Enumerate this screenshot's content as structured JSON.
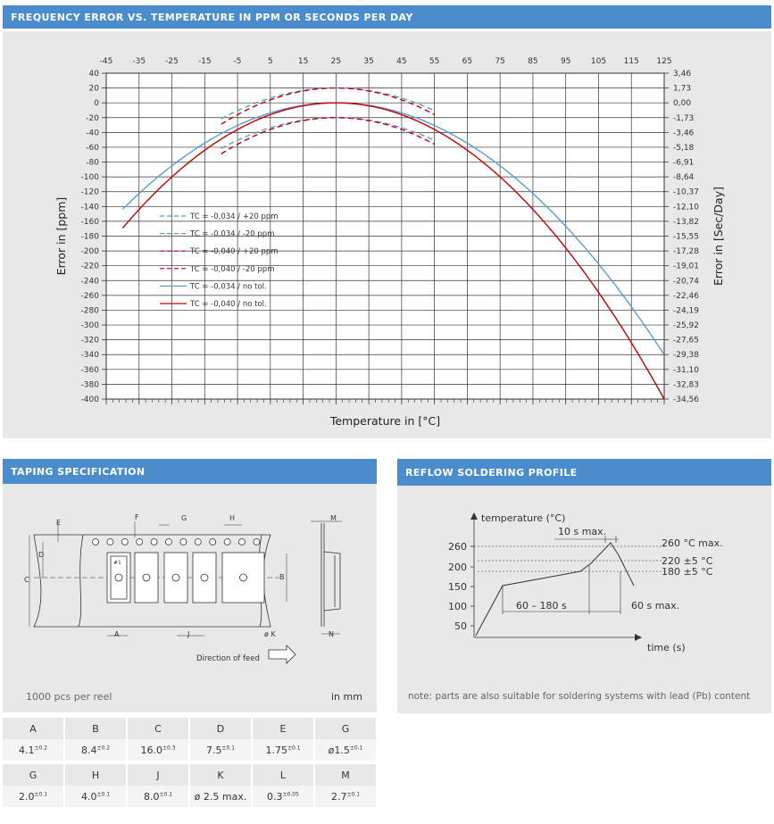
{
  "chart_section": {
    "header": "FREQUENCY ERROR VS. TEMPERATURE IN PPM OR SECONDS PER DAY"
  },
  "chart_data": {
    "type": "line",
    "title": "FREQUENCY ERROR VS. TEMPERATURE IN PPM OR SECONDS PER DAY",
    "xlabel": "Temperature in [°C]",
    "ylabel": "Error in [ppm]",
    "y2label": "Error in [Sec/Day]",
    "xlim": [
      -45,
      125
    ],
    "ylim": [
      -400,
      40
    ],
    "x_ticks": [
      "-45",
      "-35",
      "-25",
      "-15",
      "-5",
      "5",
      "15",
      "25",
      "35",
      "45",
      "55",
      "65",
      "75",
      "85",
      "95",
      "105",
      "115",
      "125"
    ],
    "y_ticks": [
      "40",
      "20",
      "0",
      "-20",
      "-40",
      "-60",
      "-80",
      "-100",
      "-120",
      "-140",
      "-160",
      "-180",
      "-200",
      "-220",
      "-240",
      "-260",
      "-280",
      "-300",
      "-320",
      "-340",
      "-360",
      "-380",
      "-400"
    ],
    "y2_ticks": [
      "3,46",
      "1,73",
      "0,00",
      "-1,73",
      "-3,46",
      "-5,18",
      "-6,91",
      "-8,64",
      "-10,37",
      "-12,10",
      "-13,82",
      "-15,55",
      "-17,28",
      "-19,01",
      "-20,74",
      "-22,46",
      "-24,19",
      "-25,92",
      "-27,65",
      "-29,38",
      "-31,10",
      "-32,83",
      "-34,56"
    ],
    "grid": true,
    "legend_position": "left-middle",
    "series": [
      {
        "name": "TC = -0,034 / +20 ppm",
        "color": "#5b9bd5",
        "dash": true,
        "tc": -0.034,
        "offset": 20,
        "x": [
          -10,
          55
        ]
      },
      {
        "name": "TC = -0,034 / -20 ppm",
        "color": "#5b9bd5",
        "dash": true,
        "tc": -0.034,
        "offset": -20,
        "x": [
          -10,
          55
        ]
      },
      {
        "name": "TC = -0,040 / +20 ppm",
        "color": "#c00000",
        "dash": true,
        "tc": -0.04,
        "offset": 20,
        "x": [
          -10,
          55
        ]
      },
      {
        "name": "TC = -0,040 / -20 ppm",
        "color": "#c00000",
        "dash": true,
        "tc": -0.04,
        "offset": -20,
        "x": [
          -10,
          55
        ]
      },
      {
        "name": "TC = -0,034 / no tol.",
        "color": "#5b9bd5",
        "dash": false,
        "tc": -0.034,
        "offset": 0,
        "x": [
          -40,
          125
        ]
      },
      {
        "name": "TC = -0,040 / no tol.",
        "color": "#c00000",
        "dash": false,
        "tc": -0.04,
        "offset": 0,
        "x": [
          -40,
          125
        ]
      }
    ],
    "turnover_temperature": 25
  },
  "taping": {
    "header": "TAPING SPECIFICATION",
    "labels": {
      "E": "E",
      "F": "F",
      "G": "G",
      "H": "H",
      "M": "M",
      "D": "D",
      "C": "C",
      "B": "B",
      "A": "A",
      "J": "J",
      "K": "ø K",
      "N": "N",
      "pin": "#1"
    },
    "direction": "Direction of feed",
    "footer_left": "1000 pcs per reel",
    "footer_right": "in mm",
    "table": [
      {
        "headers": [
          "A",
          "B",
          "C",
          "D",
          "E",
          "G"
        ],
        "values": [
          [
            "4.1",
            "±0.2"
          ],
          [
            "8.4",
            "±0.2"
          ],
          [
            "16.0",
            "±0.3"
          ],
          [
            "7.5",
            "±0.1"
          ],
          [
            "1.75",
            "±0.1"
          ],
          [
            "ø1.5",
            "±0.1"
          ]
        ]
      },
      {
        "headers": [
          "G",
          "H",
          "J",
          "K",
          "L",
          "M"
        ],
        "values": [
          [
            "2.0",
            "±0.1"
          ],
          [
            "4.0",
            "±0.1"
          ],
          [
            "8.0",
            "±0.1"
          ],
          [
            "ø 2.5 max.",
            ""
          ],
          [
            "0.3",
            "±0.05"
          ],
          [
            "2.7",
            "±0.1"
          ]
        ]
      }
    ]
  },
  "reflow": {
    "header": "REFLOW SOLDERING PROFILE",
    "y_axis_label": "temperature (°C)",
    "x_axis_label": "time (s)",
    "y_ticks": [
      "260",
      "200",
      "150",
      "100",
      "50"
    ],
    "annotations": {
      "peak_time": "10 s max.",
      "peak": "260 °C max.",
      "reflow": "220 ±5 °C",
      "liquidus": "180 ±5 °C",
      "preheat": "60 – 180 s",
      "above": "60 s max."
    },
    "note": "note: parts are also suitable for soldering systems with lead (Pb) content"
  }
}
